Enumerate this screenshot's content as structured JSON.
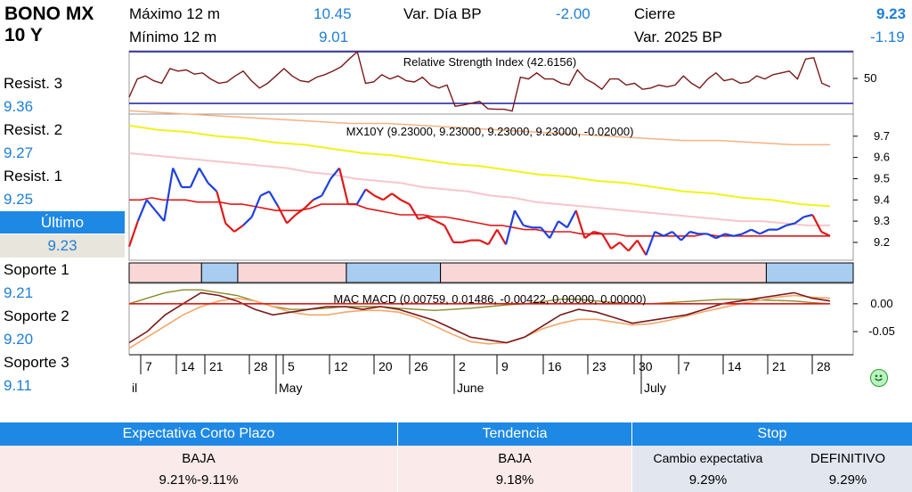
{
  "instrument": {
    "line1": "BONO MX",
    "line2": "10 Y"
  },
  "header_stats": {
    "max12m_label": "Máximo 12 m",
    "max12m_value": "10.45",
    "min12m_label": "Mínimo 12 m",
    "min12m_value": "9.01",
    "vardia_label": "Var. Día BP",
    "vardia_value": "-2.00",
    "cierre_label": "Cierre",
    "cierre_value": "9.23",
    "var2025_label": "Var. 2025 BP",
    "var2025_value": "-1.19"
  },
  "levels": {
    "r3_label": "Resist. 3",
    "r3_value": "9.36",
    "r2_label": "Resist. 2",
    "r2_value": "9.27",
    "r1_label": "Resist. 1",
    "r1_value": "9.25",
    "ultimo_label": "Último",
    "ultimo_value": "9.23",
    "s1_label": "Soporte 1",
    "s1_value": "9.21",
    "s2_label": "Soporte 2",
    "s2_value": "9.20",
    "s3_label": "Soporte 3",
    "s3_value": "9.11"
  },
  "chart_data": {
    "type": "line",
    "rsi": {
      "title": "Relative Strength Index (42.6156)",
      "tick_label": "50",
      "values": [
        25,
        55,
        60,
        52,
        48,
        72,
        68,
        70,
        63,
        65,
        55,
        48,
        50,
        60,
        68,
        52,
        40,
        48,
        60,
        72,
        60,
        52,
        50,
        58,
        62,
        68,
        75,
        88,
        100,
        48,
        50,
        62,
        55,
        60,
        52,
        50,
        58,
        45,
        40,
        45,
        10,
        12,
        15,
        18,
        6,
        5,
        5,
        2,
        58,
        55,
        65,
        55,
        55,
        48,
        45,
        70,
        55,
        48,
        38,
        55,
        55,
        45,
        48,
        38,
        40,
        45,
        42,
        45,
        60,
        48,
        40,
        55,
        65,
        52,
        55,
        48,
        50,
        60,
        55,
        62,
        65,
        68,
        55,
        88,
        90,
        48,
        42
      ]
    },
    "price": {
      "title": "MX10Y (9.23000, 9.23000, 9.23000, 9.23000, -0.02000)",
      "y_ticks": [
        "9.7",
        "9.6",
        "9.5",
        "9.4",
        "9.3",
        "9.2"
      ],
      "ylim": [
        9.12,
        9.8
      ],
      "close": [
        9.18,
        9.3,
        9.4,
        9.35,
        9.3,
        9.55,
        9.46,
        9.46,
        9.55,
        9.48,
        9.44,
        9.29,
        9.25,
        9.28,
        9.32,
        9.42,
        9.44,
        9.37,
        9.29,
        9.33,
        9.36,
        9.4,
        9.42,
        9.5,
        9.55,
        9.38,
        9.38,
        9.45,
        9.42,
        9.4,
        9.43,
        9.4,
        9.38,
        9.31,
        9.32,
        9.3,
        9.28,
        9.2,
        9.2,
        9.21,
        9.21,
        9.19,
        9.26,
        9.19,
        9.35,
        9.28,
        9.27,
        9.27,
        9.22,
        9.3,
        9.27,
        9.35,
        9.22,
        9.25,
        9.24,
        9.17,
        9.2,
        9.16,
        9.21,
        9.14,
        9.25,
        9.23,
        9.25,
        9.21,
        9.25,
        9.24,
        9.24,
        9.22,
        9.24,
        9.23,
        9.24,
        9.26,
        9.24,
        9.26,
        9.26,
        9.28,
        9.29,
        9.32,
        9.33,
        9.25,
        9.23
      ],
      "trend": [
        false,
        false,
        true,
        true,
        true,
        true,
        true,
        true,
        true,
        true,
        true,
        false,
        false,
        false,
        true,
        true,
        true,
        true,
        false,
        false,
        false,
        false,
        true,
        true,
        true,
        false,
        false,
        true,
        false,
        false,
        false,
        false,
        false,
        false,
        false,
        false,
        false,
        false,
        false,
        false,
        false,
        false,
        false,
        false,
        true,
        true,
        true,
        true,
        true,
        true,
        true,
        true,
        false,
        false,
        false,
        false,
        false,
        false,
        false,
        false,
        true,
        true,
        true,
        true,
        true,
        true,
        true,
        true,
        true,
        true,
        true,
        true,
        true,
        true,
        true,
        true,
        true,
        true,
        true,
        false,
        false
      ],
      "ma_short": [
        9.4,
        9.4,
        9.41,
        9.4,
        9.4,
        9.4,
        9.39,
        9.39,
        9.39,
        9.38,
        9.38,
        9.37,
        9.36,
        9.35,
        9.35,
        9.35,
        9.36,
        9.38,
        9.38,
        9.38,
        9.38,
        9.36,
        9.35,
        9.34,
        9.33,
        9.33,
        9.33,
        9.32,
        9.32,
        9.31,
        9.3,
        9.29,
        9.28,
        9.28,
        9.27,
        9.26,
        9.26,
        9.25,
        9.25,
        9.25,
        9.24,
        9.24,
        9.24,
        9.24,
        9.23,
        9.23,
        9.23,
        9.23,
        9.23,
        9.23,
        9.23,
        9.24,
        9.23,
        9.23,
        9.23,
        9.23,
        9.23,
        9.23,
        9.23,
        9.23,
        9.23,
        9.23,
        9.23
      ],
      "ma_mid": [
        9.62,
        9.61,
        9.6,
        9.59,
        9.58,
        9.57,
        9.56,
        9.55,
        9.53,
        9.52,
        9.5,
        9.49,
        9.48,
        9.46,
        9.45,
        9.44,
        9.42,
        9.41,
        9.39,
        9.38,
        9.37,
        9.36,
        9.35,
        9.34,
        9.33,
        9.32,
        9.31,
        9.3,
        9.3,
        9.29,
        9.28,
        9.28
      ],
      "ma_yellow": [
        9.75,
        9.73,
        9.72,
        9.7,
        9.69,
        9.67,
        9.66,
        9.64,
        9.62,
        9.61,
        9.59,
        9.57,
        9.56,
        9.54,
        9.52,
        9.51,
        9.49,
        9.48,
        9.46,
        9.44,
        9.43,
        9.41,
        9.4,
        9.38,
        9.37
      ],
      "ma_long": [
        9.82,
        9.81,
        9.8,
        9.79,
        9.78,
        9.77,
        9.76,
        9.76,
        9.75,
        9.74,
        9.73,
        9.72,
        9.71,
        9.7,
        9.69,
        9.68,
        9.68,
        9.67,
        9.66,
        9.66
      ]
    },
    "regime_bands": [
      {
        "from": 0.0,
        "to": 0.1,
        "color": "#f9d7d7"
      },
      {
        "from": 0.1,
        "to": 0.15,
        "color": "#a8cdf1"
      },
      {
        "from": 0.15,
        "to": 0.3,
        "color": "#f9d7d7"
      },
      {
        "from": 0.3,
        "to": 0.43,
        "color": "#a8cdf1"
      },
      {
        "from": 0.43,
        "to": 0.88,
        "color": "#f9d7d7"
      },
      {
        "from": 0.88,
        "to": 1.0,
        "color": "#a8cdf1"
      }
    ],
    "macd": {
      "title": "MAC MACD (0.00759, 0.01486, -0.00422, 0.00000, 0.00000)",
      "y_ticks": [
        "0.00",
        "-0.05"
      ],
      "ylim": [
        -0.09,
        0.035
      ],
      "macd": [
        -0.07,
        -0.05,
        -0.02,
        0.0,
        0.02,
        0.015,
        0.005,
        -0.01,
        -0.02,
        -0.015,
        -0.01,
        -0.005,
        -0.005,
        -0.01,
        -0.005,
        -0.01,
        -0.02,
        -0.03,
        -0.045,
        -0.06,
        -0.065,
        -0.07,
        -0.06,
        -0.04,
        -0.02,
        -0.01,
        -0.015,
        -0.025,
        -0.035,
        -0.03,
        -0.025,
        -0.02,
        -0.01,
        0.0,
        0.005,
        0.01,
        0.015,
        0.02,
        0.01,
        0.005
      ],
      "signal": [
        -0.08,
        -0.06,
        -0.04,
        -0.02,
        -0.005,
        0.005,
        0.01,
        0.005,
        -0.005,
        -0.015,
        -0.02,
        -0.02,
        -0.015,
        -0.012,
        -0.012,
        -0.015,
        -0.025,
        -0.04,
        -0.055,
        -0.068,
        -0.072,
        -0.07,
        -0.06,
        -0.045,
        -0.035,
        -0.028,
        -0.028,
        -0.033,
        -0.038,
        -0.036,
        -0.03,
        -0.022,
        -0.014,
        -0.007,
        0.0,
        0.006,
        0.012,
        0.015,
        0.012,
        0.01
      ],
      "hist": [
        0.0,
        0.01,
        0.02,
        0.025,
        0.025,
        0.02,
        0.015,
        0.005,
        -0.005,
        -0.01,
        -0.01,
        -0.008,
        -0.005,
        -0.005,
        -0.005,
        -0.008,
        -0.01,
        -0.012,
        -0.01,
        -0.008,
        -0.005,
        -0.002,
        0.0,
        0.004,
        0.008,
        0.008,
        0.005,
        0.002,
        0.0,
        0.0,
        0.002,
        0.004,
        0.006,
        0.008,
        0.008,
        0.007,
        0.006,
        0.005,
        0.002,
        0.0
      ]
    },
    "x_ticks": [
      "7",
      "14",
      "21",
      "28",
      "5",
      "12",
      "20",
      "26",
      "2",
      "9",
      "16",
      "23",
      "30",
      "7",
      "14",
      "21",
      "28"
    ],
    "months": [
      "il",
      "May",
      "June",
      "July"
    ]
  },
  "footer": {
    "h1": "Expectativa Corto Plazo",
    "h2": "Tendencia",
    "h3": "Stop",
    "exp_label": "BAJA",
    "exp_value": "9.21%-9.11%",
    "tend_label": "BAJA",
    "tend_value": "9.18%",
    "stop_change_label": "Cambio expectativa",
    "stop_change_value": "9.29%",
    "stop_def_label": "DEFINITIVO",
    "stop_def_value": "9.29%"
  },
  "colors": {
    "header_blue": "#1e88e5",
    "value_blue": "#1f7fd6",
    "price_up": "#1f3fe0",
    "price_down": "#e01818",
    "rsi_line": "#7a1a1a",
    "band_blue": "#a8cdf1",
    "band_pink": "#f9d7d7"
  }
}
